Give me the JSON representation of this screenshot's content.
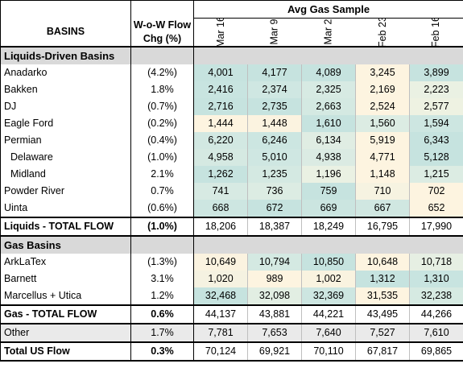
{
  "header": {
    "sample_title": "Avg Gas Sample",
    "basins_label": "BASINS",
    "chg_label_line1": "W-o-W Flow",
    "chg_label_line2": "Chg (%)",
    "weeks": [
      "Mar 16",
      "Mar 9",
      "Mar 2",
      "Feb 23",
      "Feb 16"
    ]
  },
  "sections": [
    {
      "title": "Liquids-Driven Basins",
      "rows": [
        {
          "name": "Anadarko",
          "chg": "(4.2%)",
          "values": [
            "4,001",
            "4,177",
            "4,089",
            "3,245",
            "3,899"
          ],
          "colors": [
            "#c6e3df",
            "#c6e3df",
            "#c6e3df",
            "#fdf4e0",
            "#c6e3df"
          ]
        },
        {
          "name": "Bakken",
          "chg": "1.8%",
          "values": [
            "2,416",
            "2,374",
            "2,325",
            "2,169",
            "2,223"
          ],
          "colors": [
            "#c8e4e0",
            "#cfe7e2",
            "#d7eae3",
            "#fdf4e0",
            "#eaf1e3"
          ]
        },
        {
          "name": "DJ",
          "chg": "(0.7%)",
          "values": [
            "2,716",
            "2,735",
            "2,663",
            "2,524",
            "2,577"
          ],
          "colors": [
            "#c6e3df",
            "#c6e3df",
            "#d4e9e2",
            "#fdf4e0",
            "#eef2e2"
          ]
        },
        {
          "name": "Eagle Ford",
          "chg": "(0.2%)",
          "values": [
            "1,444",
            "1,448",
            "1,610",
            "1,560",
            "1,594"
          ],
          "colors": [
            "#fdf4e0",
            "#fbf3e0",
            "#c6e3df",
            "#dcece3",
            "#cde6e1"
          ]
        },
        {
          "name": "Permian",
          "chg": "(0.4%)",
          "values": [
            "6,220",
            "6,246",
            "6,134",
            "5,919",
            "6,343"
          ],
          "colors": [
            "#d2e8e2",
            "#cce6e1",
            "#e0ede3",
            "#fdf4e0",
            "#c6e3df"
          ]
        },
        {
          "name": "Delaware",
          "chg": "(1.0%)",
          "values": [
            "4,958",
            "5,010",
            "4,938",
            "4,771",
            "5,128"
          ],
          "colors": [
            "#d5e9e2",
            "#cfe7e2",
            "#dbebe3",
            "#fdf4e0",
            "#c6e3df"
          ],
          "indent": true
        },
        {
          "name": "Midland",
          "chg": "2.1%",
          "values": [
            "1,262",
            "1,235",
            "1,196",
            "1,148",
            "1,215"
          ],
          "colors": [
            "#c6e3df",
            "#d4e9e2",
            "#eaf1e3",
            "#fdf4e0",
            "#dcece3"
          ],
          "indent": true
        },
        {
          "name": "Powder River",
          "chg": "0.7%",
          "values": [
            "741",
            "736",
            "759",
            "710",
            "702"
          ],
          "colors": [
            "#d7eae3",
            "#dcece3",
            "#c6e3df",
            "#f6f3e1",
            "#fdf4e0"
          ]
        },
        {
          "name": "Uinta",
          "chg": "(0.6%)",
          "values": [
            "668",
            "672",
            "669",
            "667",
            "652"
          ],
          "colors": [
            "#cde6e1",
            "#c6e3df",
            "#cbe5e0",
            "#d0e7e1",
            "#fdf4e0"
          ]
        }
      ],
      "total": {
        "name": "Liquids - TOTAL FLOW",
        "chg": "(1.0%)",
        "values": [
          "18,206",
          "18,387",
          "18,249",
          "16,795",
          "17,990"
        ]
      }
    },
    {
      "title": "Gas Basins",
      "rows": [
        {
          "name": "ArkLaTex",
          "chg": "(1.3%)",
          "values": [
            "10,649",
            "10,794",
            "10,850",
            "10,648",
            "10,718"
          ],
          "colors": [
            "#fbf3e0",
            "#d4e9e2",
            "#c6e3df",
            "#fdf4e0",
            "#e6efe3"
          ]
        },
        {
          "name": "Barnett",
          "chg": "3.1%",
          "values": [
            "1,020",
            "989",
            "1,002",
            "1,312",
            "1,310"
          ],
          "colors": [
            "#f5f2e1",
            "#fdf4e0",
            "#f9f3e0",
            "#c6e3df",
            "#c8e4e0"
          ]
        },
        {
          "name": "Marcellus + Utica",
          "chg": "1.2%",
          "values": [
            "32,468",
            "32,098",
            "32,369",
            "31,535",
            "32,238"
          ],
          "colors": [
            "#c6e3df",
            "#e2eee3",
            "#cde6e1",
            "#fdf4e0",
            "#d6eae2"
          ]
        }
      ],
      "total": {
        "name": "Gas - TOTAL FLOW",
        "chg": "0.6%",
        "values": [
          "44,137",
          "43,881",
          "44,221",
          "43,495",
          "44,266"
        ]
      }
    }
  ],
  "other": {
    "name": "Other",
    "chg": "1.7%",
    "values": [
      "7,781",
      "7,653",
      "7,640",
      "7,527",
      "7,610"
    ]
  },
  "grand_total": {
    "name": "Total US Flow",
    "chg": "0.3%",
    "values": [
      "70,124",
      "69,921",
      "70,110",
      "67,817",
      "69,865"
    ]
  }
}
